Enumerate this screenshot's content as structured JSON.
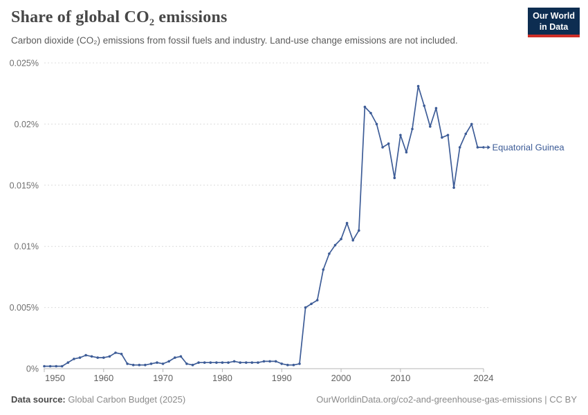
{
  "header": {
    "title": "Share of global CO₂ emissions",
    "subtitle": "Carbon dioxide (CO₂) emissions from fossil fuels and industry. Land-use change emissions are not included.",
    "logo": {
      "line1": "Our World",
      "line2": "in Data",
      "bg_color": "#0d2d51",
      "accent_color": "#ce2e27"
    }
  },
  "chart_data": {
    "type": "line",
    "title": "Share of global CO₂ emissions",
    "xlabel": "",
    "ylabel": "",
    "unit": "%",
    "grid": "horizontal-dashed",
    "legend_position": "end-of-line-label",
    "ylim": [
      0,
      0.025
    ],
    "yticks": [
      {
        "value": 0,
        "label": "0%"
      },
      {
        "value": 0.005,
        "label": "0.005%"
      },
      {
        "value": 0.01,
        "label": "0.01%"
      },
      {
        "value": 0.015,
        "label": "0.015%"
      },
      {
        "value": 0.02,
        "label": "0.02%"
      },
      {
        "value": 0.025,
        "label": "0.025%"
      }
    ],
    "xticks": [
      {
        "value": 1950,
        "label": "1950"
      },
      {
        "value": 1960,
        "label": "1960"
      },
      {
        "value": 1970,
        "label": "1970"
      },
      {
        "value": 1980,
        "label": "1980"
      },
      {
        "value": 1990,
        "label": "1990"
      },
      {
        "value": 2000,
        "label": "2000"
      },
      {
        "value": 2010,
        "label": "2010"
      },
      {
        "value": 2024,
        "label": "2024"
      }
    ],
    "x": [
      1950,
      1951,
      1952,
      1953,
      1954,
      1955,
      1956,
      1957,
      1958,
      1959,
      1960,
      1961,
      1962,
      1963,
      1964,
      1965,
      1966,
      1967,
      1968,
      1969,
      1970,
      1971,
      1972,
      1973,
      1974,
      1975,
      1976,
      1977,
      1978,
      1979,
      1980,
      1981,
      1982,
      1983,
      1984,
      1985,
      1986,
      1987,
      1988,
      1989,
      1990,
      1991,
      1992,
      1993,
      1994,
      1995,
      1996,
      1997,
      1998,
      1999,
      2000,
      2001,
      2002,
      2003,
      2004,
      2005,
      2006,
      2007,
      2008,
      2009,
      2010,
      2011,
      2012,
      2013,
      2014,
      2015,
      2016,
      2017,
      2018,
      2019,
      2020,
      2021,
      2022,
      2023,
      2024
    ],
    "series": [
      {
        "name": "Equatorial Guinea",
        "color": "#3d5c97",
        "values": [
          0.0002,
          0.0002,
          0.0002,
          0.0002,
          0.0005,
          0.0008,
          0.0009,
          0.0011,
          0.001,
          0.0009,
          0.0009,
          0.001,
          0.0013,
          0.0012,
          0.0004,
          0.0003,
          0.0003,
          0.0003,
          0.0004,
          0.0005,
          0.0004,
          0.0006,
          0.0009,
          0.001,
          0.0004,
          0.0003,
          0.0005,
          0.0005,
          0.0005,
          0.0005,
          0.0005,
          0.0005,
          0.0006,
          0.0005,
          0.0005,
          0.0005,
          0.0005,
          0.0006,
          0.0006,
          0.0006,
          0.0004,
          0.0003,
          0.0003,
          0.0004,
          0.005,
          0.0053,
          0.0056,
          0.0081,
          0.0094,
          0.0101,
          0.0106,
          0.0119,
          0.0105,
          0.0113,
          0.0214,
          0.0209,
          0.02,
          0.0181,
          0.0184,
          0.0156,
          0.0191,
          0.0177,
          0.0196,
          0.0231,
          0.0215,
          0.0198,
          0.0213,
          0.0189,
          0.0191,
          0.0148,
          0.0181,
          0.0192,
          0.02,
          0.0181,
          0.0181
        ]
      }
    ]
  },
  "footer": {
    "source_label": "Data source:",
    "source_value": " Global Carbon Budget (2025)",
    "url": "OurWorldinData.org/co2-and-greenhouse-gas-emissions | CC BY"
  },
  "colors": {
    "line": "#3d5c97",
    "grid": "#dcdcdc",
    "axis": "#b5b5b5",
    "axis_text": "#6e6e6e"
  }
}
